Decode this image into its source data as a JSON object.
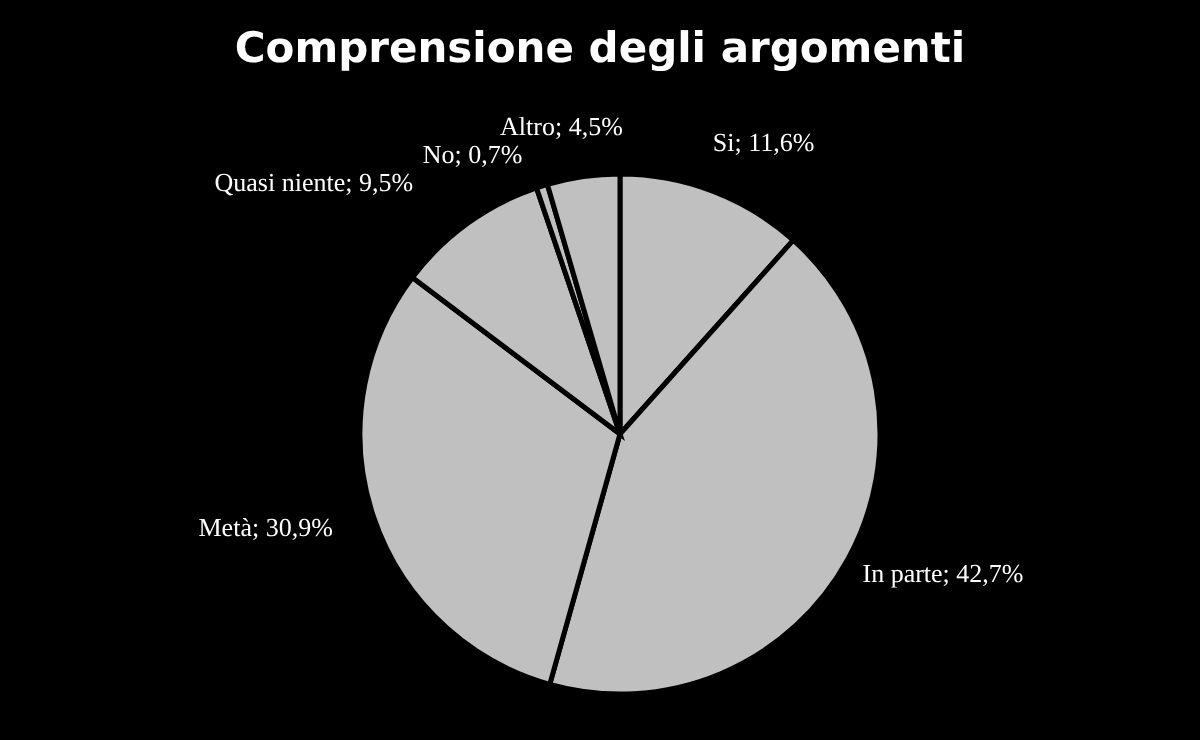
{
  "chart_data": {
    "type": "pie",
    "title": "Comprensione degli argomenti",
    "categories": [
      "Si",
      "In parte",
      "Metà",
      "Quasi niente",
      "No",
      "Altro"
    ],
    "values": [
      11.6,
      42.7,
      30.9,
      9.5,
      0.7,
      4.5
    ],
    "value_labels": [
      "11,6%",
      "42,7%",
      "30,9%",
      "9,5%",
      "0,7%",
      "4,5%"
    ],
    "colors": [
      "#c0c0c0",
      "#c0c0c0",
      "#c0c0c0",
      "#c0c0c0",
      "#c0c0c0",
      "#c0c0c0"
    ],
    "legend": false
  }
}
